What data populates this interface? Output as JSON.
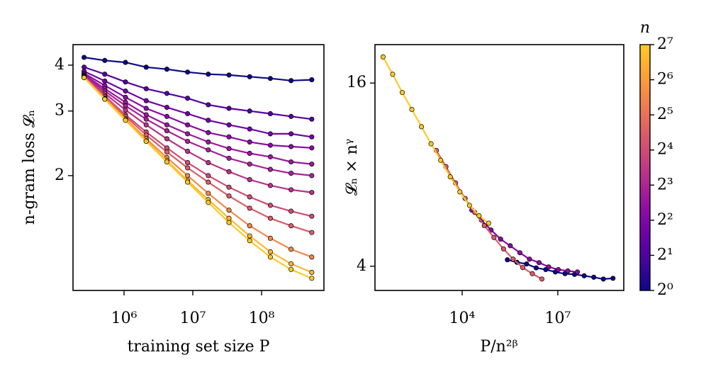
{
  "chart_data": [
    {
      "type": "line",
      "xlabel": "training set size P",
      "ylabel": "n-gram loss 𝓛ₙ",
      "xscale": "log",
      "yscale": "log",
      "xlim": [
        181000,
        807000000
      ],
      "ylim": [
        0.973,
        4.55
      ],
      "xticks": [
        {
          "value": 1000000,
          "label": "10⁶"
        },
        {
          "value": 10000000,
          "label": "10⁷"
        },
        {
          "value": 100000000,
          "label": "10⁸"
        }
      ],
      "yticks": [
        2,
        3,
        4
      ],
      "x": [
        262144,
        524288,
        1048576,
        2097152,
        4194304,
        8388608,
        16777216,
        33554432,
        67108864,
        134217728,
        268435456,
        536870912
      ],
      "series": [
        {
          "color": "#0d0887",
          "values": [
            4.2,
            4.12,
            4.07,
            3.95,
            3.9,
            3.83,
            3.78,
            3.76,
            3.72,
            3.68,
            3.63,
            3.65
          ]
        },
        {
          "color": "#5402a3",
          "values": [
            3.95,
            3.78,
            3.6,
            3.45,
            3.35,
            3.25,
            3.12,
            3.05,
            3.0,
            2.95,
            2.9,
            2.85
          ]
        },
        {
          "color": "#7201a8",
          "values": [
            3.85,
            3.62,
            3.4,
            3.2,
            3.07,
            2.95,
            2.83,
            2.75,
            2.68,
            2.6,
            2.6,
            2.55
          ]
        },
        {
          "color": "#8b0aa5",
          "values": [
            3.8,
            3.52,
            3.27,
            3.05,
            2.9,
            2.75,
            2.62,
            2.55,
            2.47,
            2.42,
            2.4,
            2.38
          ]
        },
        {
          "color": "#9c179e",
          "values": [
            3.77,
            3.45,
            3.17,
            2.93,
            2.75,
            2.6,
            2.47,
            2.37,
            2.3,
            2.25,
            2.18,
            2.15
          ]
        },
        {
          "color": "#a72197",
          "values": [
            3.75,
            3.4,
            3.1,
            2.85,
            2.65,
            2.48,
            2.35,
            2.23,
            2.15,
            2.08,
            2.03,
            2.0
          ]
        },
        {
          "color": "#b83289",
          "values": [
            3.73,
            3.35,
            3.02,
            2.75,
            2.52,
            2.33,
            2.17,
            2.05,
            1.95,
            1.88,
            1.83,
            1.8
          ]
        },
        {
          "color": "#cf4c74",
          "values": [
            3.72,
            3.3,
            2.93,
            2.63,
            2.38,
            2.17,
            2.0,
            1.86,
            1.75,
            1.66,
            1.6,
            1.55
          ]
        },
        {
          "color": "#db5c68",
          "values": [
            3.71,
            3.28,
            2.9,
            2.58,
            2.32,
            2.1,
            1.92,
            1.76,
            1.63,
            1.53,
            1.46,
            1.4
          ]
        },
        {
          "color": "#f48849",
          "values": [
            3.7,
            3.25,
            2.86,
            2.52,
            2.24,
            2.0,
            1.79,
            1.61,
            1.46,
            1.35,
            1.26,
            1.2
          ]
        },
        {
          "color": "#feb72d",
          "values": [
            3.7,
            3.24,
            2.84,
            2.49,
            2.2,
            1.94,
            1.72,
            1.53,
            1.37,
            1.24,
            1.15,
            1.09
          ]
        },
        {
          "color": "#fdca26",
          "values": [
            3.7,
            3.23,
            2.83,
            2.48,
            2.18,
            1.92,
            1.69,
            1.49,
            1.33,
            1.2,
            1.11,
            1.05
          ]
        }
      ]
    },
    {
      "type": "scatter",
      "xlabel": "P/n²ᵝ",
      "ylabel": "𝓛ₙ × nᵞ",
      "xscale": "log",
      "yscale": "log",
      "xlim": [
        18.5,
        1170000000
      ],
      "ylim": [
        3.33,
        21.4
      ],
      "xticks": [
        {
          "value": 10000,
          "label": "10⁴"
        },
        {
          "value": 10000000,
          "label": "10⁷"
        }
      ],
      "yticks": [
        4,
        16
      ],
      "series": [
        {
          "color": "#0d0887",
          "x": [
            262144,
            524288,
            1048576,
            2097152,
            4194304,
            8388608,
            16777216,
            33554432,
            67108864,
            134217728,
            268435456,
            536870912
          ],
          "values": [
            4.2,
            4.12,
            4.07,
            3.95,
            3.9,
            3.83,
            3.78,
            3.76,
            3.72,
            3.68,
            3.63,
            3.65
          ]
        },
        {
          "color": "#8b0aa5",
          "x": [
            20165,
            40330,
            80660,
            161319,
            322639,
            645277,
            1290555,
            2581110,
            5162220,
            10324441,
            20648881,
            41297762
          ],
          "values": [
            6.12,
            5.67,
            5.26,
            4.91,
            4.67,
            4.43,
            4.22,
            4.11,
            3.98,
            3.9,
            3.86,
            3.83
          ]
        },
        {
          "color": "#db5c68",
          "x": [
            1551,
            3102,
            6205,
            12409,
            24818,
            49637,
            99273,
            198547,
            397094,
            794188,
            1588375,
            3176750
          ],
          "values": [
            9.61,
            8.5,
            7.51,
            6.68,
            6.01,
            5.44,
            4.97,
            4.56,
            4.22,
            3.96,
            3.78,
            3.63
          ]
        },
        {
          "color": "#fdca26",
          "x": [
            33.2,
            66.3,
            132.6,
            265.2,
            530.5,
            1061,
            2122,
            4244,
            8487,
            16975,
            33949,
            67899
          ],
          "values": [
            19.5,
            17.1,
            14.9,
            13.1,
            11.5,
            10.1,
            8.92,
            7.87,
            7.02,
            6.34,
            5.86,
            5.54
          ]
        }
      ],
      "colorbar": {
        "title": "n",
        "scale": "log",
        "lim": [
          1,
          128
        ],
        "colors": [
          "#0d0887",
          "#41049d",
          "#6a00a8",
          "#8f0da4",
          "#b12a90",
          "#cc4778",
          "#e16462",
          "#f2844b",
          "#fca636",
          "#fdca26"
        ],
        "ticks": [
          {
            "value": 1,
            "label": "2⁰"
          },
          {
            "value": 2,
            "label": "2¹"
          },
          {
            "value": 4,
            "label": "2²"
          },
          {
            "value": 8,
            "label": "2³"
          },
          {
            "value": 16,
            "label": "2⁴"
          },
          {
            "value": 32,
            "label": "2⁵"
          },
          {
            "value": 64,
            "label": "2⁶"
          },
          {
            "value": 128,
            "label": "2⁷"
          }
        ]
      }
    }
  ]
}
